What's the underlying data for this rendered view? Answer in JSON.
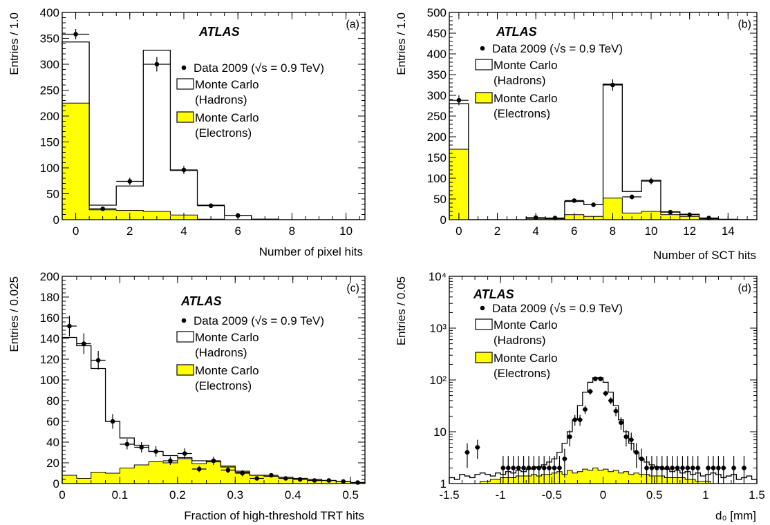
{
  "legend": {
    "data_label": "Data 2009 (√s = 0.9 TeV)",
    "mc_hadrons_line1": "Monte Carlo",
    "mc_hadrons_line2": "(Hadrons)",
    "mc_electrons_line1": "Monte Carlo",
    "mc_electrons_line2": "(Electrons)"
  },
  "colors": {
    "electrons_fill": "#ffff00",
    "line": "#000000"
  },
  "chart_data": [
    {
      "id": "a",
      "type": "bar",
      "panel_label": "(a)",
      "experiment": "ATLAS",
      "xlabel": "Number of pixel hits",
      "ylabel": "Entries / 1.0",
      "xlim": [
        -0.5,
        10.7
      ],
      "ylim": [
        0,
        400
      ],
      "x_ticks": [
        0,
        2,
        4,
        6,
        8,
        10
      ],
      "y_ticks": [
        0,
        50,
        100,
        150,
        200,
        250,
        300,
        350,
        400
      ],
      "bin_edges": [
        -0.5,
        0.5,
        1.5,
        2.5,
        3.5,
        4.5,
        5.5,
        6.5,
        7.5,
        8.5,
        9.5,
        10.5
      ],
      "series": [
        {
          "name": "Monte Carlo (Hadrons)",
          "values": [
            343,
            28,
            65,
            327,
            95,
            28,
            8,
            1,
            0,
            0,
            0
          ]
        },
        {
          "name": "Monte Carlo (Electrons)",
          "values": [
            225,
            19,
            18,
            16,
            9,
            1,
            0,
            0,
            0,
            0,
            0
          ]
        },
        {
          "name": "Data 2009 (√s = 0.9 TeV)",
          "x": [
            0,
            1,
            2,
            3,
            4,
            5,
            6
          ],
          "y": [
            358,
            21,
            74,
            300,
            96,
            27,
            8
          ],
          "yerr": [
            10,
            4,
            7,
            14,
            8,
            4,
            2
          ]
        }
      ]
    },
    {
      "id": "b",
      "type": "bar",
      "panel_label": "(b)",
      "experiment": "ATLAS",
      "xlabel": "Number of SCT hits",
      "ylabel": "Entries / 1.0",
      "xlim": [
        -0.5,
        15.5
      ],
      "ylim": [
        0,
        500
      ],
      "x_ticks": [
        0,
        2,
        4,
        6,
        8,
        10,
        12,
        14
      ],
      "y_ticks": [
        0,
        50,
        100,
        150,
        200,
        250,
        300,
        350,
        400,
        450,
        500
      ],
      "bin_edges": [
        -0.5,
        0.5,
        1.5,
        2.5,
        3.5,
        4.5,
        5.5,
        6.5,
        7.5,
        8.5,
        9.5,
        10.5,
        11.5,
        12.5,
        13.5,
        14.5,
        15.5
      ],
      "series": [
        {
          "name": "Monte Carlo (Hadrons)",
          "values": [
            280,
            0,
            0,
            0,
            5,
            3,
            44,
            36,
            327,
            68,
            95,
            19,
            13,
            3,
            1,
            0
          ]
        },
        {
          "name": "Monte Carlo (Electrons)",
          "values": [
            170,
            0,
            0,
            0,
            2,
            2,
            12,
            8,
            52,
            16,
            20,
            12,
            8,
            2,
            0,
            0
          ]
        },
        {
          "name": "Data 2009 (√s = 0.9 TeV)",
          "x": [
            0,
            4,
            5,
            6,
            7,
            8,
            9,
            10,
            11,
            12,
            13
          ],
          "y": [
            288,
            5,
            4,
            46,
            36,
            325,
            55,
            93,
            18,
            12,
            4
          ],
          "yerr": [
            12,
            2,
            2,
            5,
            5,
            14,
            6,
            8,
            3,
            3,
            2
          ]
        }
      ]
    },
    {
      "id": "c",
      "type": "bar",
      "panel_label": "(c)",
      "experiment": "ATLAS",
      "xlabel": "Fraction of high-threshold TRT hits",
      "ylabel": "Entries / 0.025",
      "xlim": [
        0,
        0.525
      ],
      "ylim": [
        0,
        200
      ],
      "x_ticks": [
        0,
        0.1,
        0.2,
        0.3,
        0.4,
        0.5
      ],
      "x_tick_labels": [
        "0",
        "0.1",
        "0.2",
        "0.3",
        "0.4",
        "0.5"
      ],
      "y_ticks": [
        0,
        20,
        40,
        60,
        80,
        100,
        120,
        140,
        160,
        180,
        200
      ],
      "bin_edges": [
        0,
        0.025,
        0.05,
        0.075,
        0.1,
        0.125,
        0.15,
        0.175,
        0.2,
        0.225,
        0.25,
        0.275,
        0.3,
        0.325,
        0.35,
        0.375,
        0.4,
        0.425,
        0.45,
        0.475,
        0.5,
        0.525
      ],
      "series": [
        {
          "name": "Monte Carlo (Hadrons)",
          "values": [
            141,
            133,
            111,
            60,
            44,
            37,
            31,
            27,
            25,
            22,
            21,
            16,
            11,
            8,
            7,
            6,
            5,
            4,
            3,
            2,
            1
          ]
        },
        {
          "name": "Monte Carlo (Electrons)",
          "values": [
            8,
            5,
            11,
            10,
            15,
            18,
            21,
            20,
            24,
            19,
            21,
            17,
            12,
            8,
            7,
            6,
            5,
            4,
            3,
            2,
            1
          ]
        },
        {
          "name": "Data 2009 (√s = 0.9 TeV)",
          "x": [
            0.0125,
            0.0375,
            0.0625,
            0.0875,
            0.1125,
            0.1375,
            0.1625,
            0.1875,
            0.2125,
            0.2375,
            0.2625,
            0.2875,
            0.3125,
            0.3375,
            0.3625,
            0.3875,
            0.4125,
            0.4375,
            0.4625,
            0.4875,
            0.5125
          ],
          "y": [
            152,
            135,
            119,
            60,
            38,
            35,
            31,
            22,
            29,
            14,
            22,
            13,
            10,
            5,
            8,
            5,
            4,
            3,
            3,
            2,
            1
          ],
          "yerr": [
            10,
            10,
            9,
            7,
            5,
            5,
            5,
            4,
            5,
            3,
            4,
            3,
            3,
            2,
            2,
            2,
            2,
            1,
            1,
            1,
            1
          ]
        }
      ]
    },
    {
      "id": "d",
      "type": "bar",
      "panel_label": "(d)",
      "experiment": "ATLAS",
      "xlabel": "d₀ [mm]",
      "ylabel": "Entries / 0.05",
      "log_y": true,
      "xlim": [
        -1.5,
        1.5
      ],
      "ylim": [
        1,
        10000
      ],
      "x_ticks": [
        -1.5,
        -1,
        -0.5,
        0,
        0.5,
        1,
        1.5
      ],
      "x_tick_labels": [
        "-1.5",
        "-1",
        "-0.5",
        "0",
        "0.5",
        "1",
        "1.5"
      ],
      "y_ticks": [
        1,
        10,
        100,
        1000,
        10000
      ],
      "y_tick_labels": [
        "1",
        "10",
        "10²",
        "10³",
        "10⁴"
      ],
      "bin_edges": [
        -1.5,
        -1.45,
        -1.4,
        -1.35,
        -1.3,
        -1.25,
        -1.2,
        -1.15,
        -1.1,
        -1.05,
        -1.0,
        -0.95,
        -0.9,
        -0.85,
        -0.8,
        -0.75,
        -0.7,
        -0.65,
        -0.6,
        -0.55,
        -0.5,
        -0.45,
        -0.4,
        -0.35,
        -0.3,
        -0.25,
        -0.2,
        -0.15,
        -0.1,
        -0.05,
        0.0,
        0.05,
        0.1,
        0.15,
        0.2,
        0.25,
        0.3,
        0.35,
        0.4,
        0.45,
        0.5,
        0.55,
        0.6,
        0.65,
        0.7,
        0.75,
        0.8,
        0.85,
        0.9,
        0.95,
        1.0,
        1.05,
        1.1,
        1.15,
        1.2,
        1.25,
        1.3,
        1.35,
        1.4,
        1.45,
        1.5
      ],
      "series": [
        {
          "name": "Monte Carlo (Hadrons)",
          "values": [
            1.3,
            1.2,
            1.5,
            1.4,
            1.3,
            1.5,
            1.6,
            1.5,
            1.4,
            1.6,
            1.5,
            1.7,
            1.6,
            1.8,
            1.7,
            1.9,
            2.0,
            2.1,
            2.3,
            2.6,
            3.0,
            4,
            6,
            10,
            17,
            32,
            58,
            90,
            110,
            110,
            90,
            58,
            32,
            17,
            10,
            6,
            4,
            3.0,
            2.6,
            2.3,
            2.1,
            2.0,
            1.9,
            1.7,
            1.8,
            1.6,
            1.7,
            1.5,
            1.6,
            1.4,
            1.5,
            1.6,
            1.5,
            1.3,
            1.4,
            1.5,
            1.2,
            1.3,
            1.4,
            1.2
          ]
        },
        {
          "name": "Monte Carlo (Electrons)",
          "values": [
            1.0,
            1.0,
            1.0,
            1.0,
            1.0,
            1.0,
            1.1,
            1.1,
            1.2,
            1.2,
            1.3,
            1.3,
            1.3,
            1.4,
            1.4,
            1.4,
            1.5,
            1.4,
            1.5,
            1.5,
            1.6,
            1.7,
            1.5,
            1.8,
            1.6,
            1.7,
            1.9,
            1.8,
            2.0,
            1.8,
            1.9,
            1.7,
            1.8,
            1.6,
            1.7,
            1.5,
            1.6,
            1.5,
            1.5,
            1.4,
            1.4,
            1.4,
            1.3,
            1.3,
            1.3,
            1.3,
            1.2,
            1.2,
            1.1,
            1.1,
            1.1,
            1.0,
            1.0,
            1.0,
            1.0,
            1.0,
            1.0,
            1.0,
            1.0,
            1.0
          ]
        },
        {
          "name": "Data 2009 (√s = 0.9 TeV)",
          "x": [
            -1.325,
            -1.225,
            -0.975,
            -0.925,
            -0.875,
            -0.825,
            -0.775,
            -0.725,
            -0.675,
            -0.625,
            -0.575,
            -0.525,
            -0.475,
            -0.425,
            -0.375,
            -0.325,
            -0.275,
            -0.225,
            -0.175,
            -0.125,
            -0.075,
            -0.025,
            0.025,
            0.075,
            0.125,
            0.175,
            0.225,
            0.275,
            0.325,
            0.375,
            0.425,
            0.475,
            0.525,
            0.575,
            0.625,
            0.675,
            0.725,
            0.775,
            0.825,
            0.875,
            0.925,
            1.025,
            1.075,
            1.125,
            1.175,
            1.275,
            1.375
          ],
          "y": [
            4,
            5,
            2,
            2,
            2,
            2,
            2,
            2,
            2,
            2,
            2,
            2,
            2,
            2,
            3,
            8,
            17,
            17,
            27,
            60,
            105,
            105,
            55,
            40,
            25,
            15,
            8,
            7,
            4,
            3,
            2,
            2,
            2,
            2,
            2,
            2,
            2,
            2,
            2,
            2,
            2,
            2,
            2,
            2,
            2,
            2,
            2
          ],
          "yerr": [
            2,
            2,
            1.4,
            1.4,
            1.4,
            1.4,
            1.4,
            1.4,
            1.4,
            1.4,
            1.4,
            1.4,
            1.4,
            1.4,
            1.7,
            2.8,
            4,
            4,
            5,
            8,
            10,
            10,
            7,
            6,
            5,
            4,
            2.8,
            2.6,
            2,
            1.7,
            1.4,
            1.4,
            1.4,
            1.4,
            1.4,
            1.4,
            1.4,
            1.4,
            1.4,
            1.4,
            1.4,
            1.4,
            1.4,
            1.4,
            1.4,
            1.4,
            1.4
          ]
        }
      ]
    }
  ]
}
